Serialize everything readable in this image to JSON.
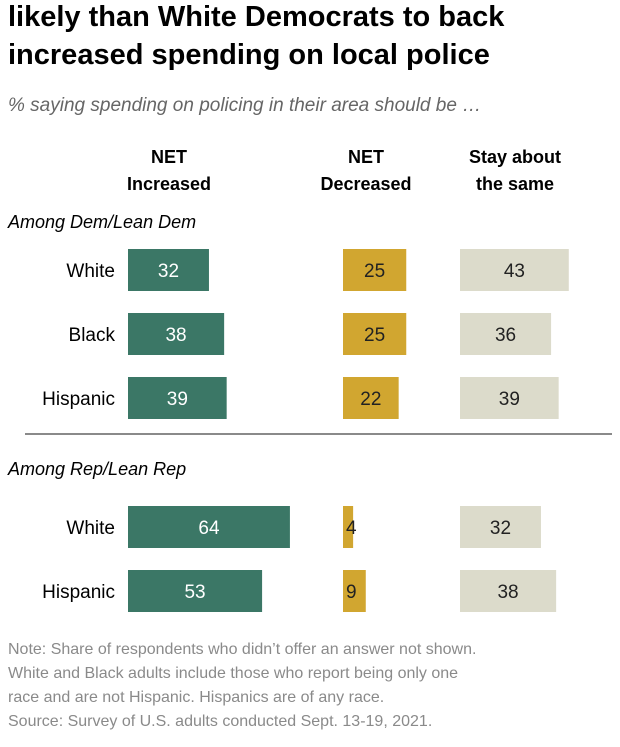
{
  "chart_data": {
    "type": "bar",
    "title_lines": [
      "likely than White Democrats to back",
      "increased spending on local police"
    ],
    "subtitle": "% saying spending on policing in their area should be …",
    "columns": [
      {
        "key": "increased",
        "label_lines": [
          "NET",
          "Increased"
        ],
        "color": "#3b7766",
        "text_color": "#ffffff"
      },
      {
        "key": "decreased",
        "label_lines": [
          "NET",
          "Decreased"
        ],
        "color": "#d1a630",
        "text_color": "#222222"
      },
      {
        "key": "same",
        "label_lines": [
          "Stay about",
          "the same"
        ],
        "color": "#dcdbcb",
        "text_color": "#222222"
      }
    ],
    "groups": [
      {
        "name": "Among Dem/Lean Dem",
        "rows": [
          {
            "label": "White",
            "increased": 32,
            "decreased": 25,
            "same": 43
          },
          {
            "label": "Black",
            "increased": 38,
            "decreased": 25,
            "same": 36
          },
          {
            "label": "Hispanic",
            "increased": 39,
            "decreased": 22,
            "same": 39
          }
        ]
      },
      {
        "name": "Among Rep/Lean Rep",
        "rows": [
          {
            "label": "White",
            "increased": 64,
            "decreased": 4,
            "same": 32
          },
          {
            "label": "Hispanic",
            "increased": 53,
            "decreased": 9,
            "same": 38
          }
        ]
      }
    ],
    "notes": [
      "Note: Share of respondents who didn’t offer an answer not shown.",
      "White and Black adults include those who report being only one",
      "race and are not Hispanic. Hispanics are of any race.",
      "Source: Survey of U.S. adults conducted Sept. 13-19, 2021."
    ]
  }
}
